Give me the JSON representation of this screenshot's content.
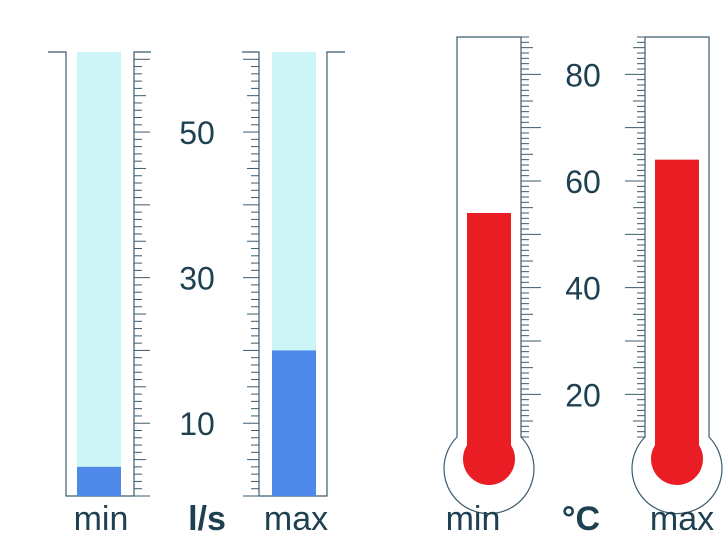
{
  "chart_data": [
    {
      "type": "gauge",
      "unit": "l/s",
      "axis_ticks": [
        "10",
        "30",
        "50"
      ],
      "ylim": [
        0,
        61
      ],
      "series": [
        {
          "name": "min",
          "value": 4
        },
        {
          "name": "max",
          "value": 20
        }
      ]
    },
    {
      "type": "gauge",
      "unit": "°C",
      "axis_ticks": [
        "20",
        "40",
        "60",
        "80"
      ],
      "ylim": [
        12,
        87
      ],
      "series": [
        {
          "name": "min",
          "value": 54
        },
        {
          "name": "max",
          "value": 64
        }
      ]
    }
  ],
  "colors": {
    "flow_fill": "#4e88e8",
    "flow_tube": "#cdf4f7",
    "temp_fill": "#ea1c24",
    "outline": "#3c5a6c",
    "text": "#1e4050"
  }
}
